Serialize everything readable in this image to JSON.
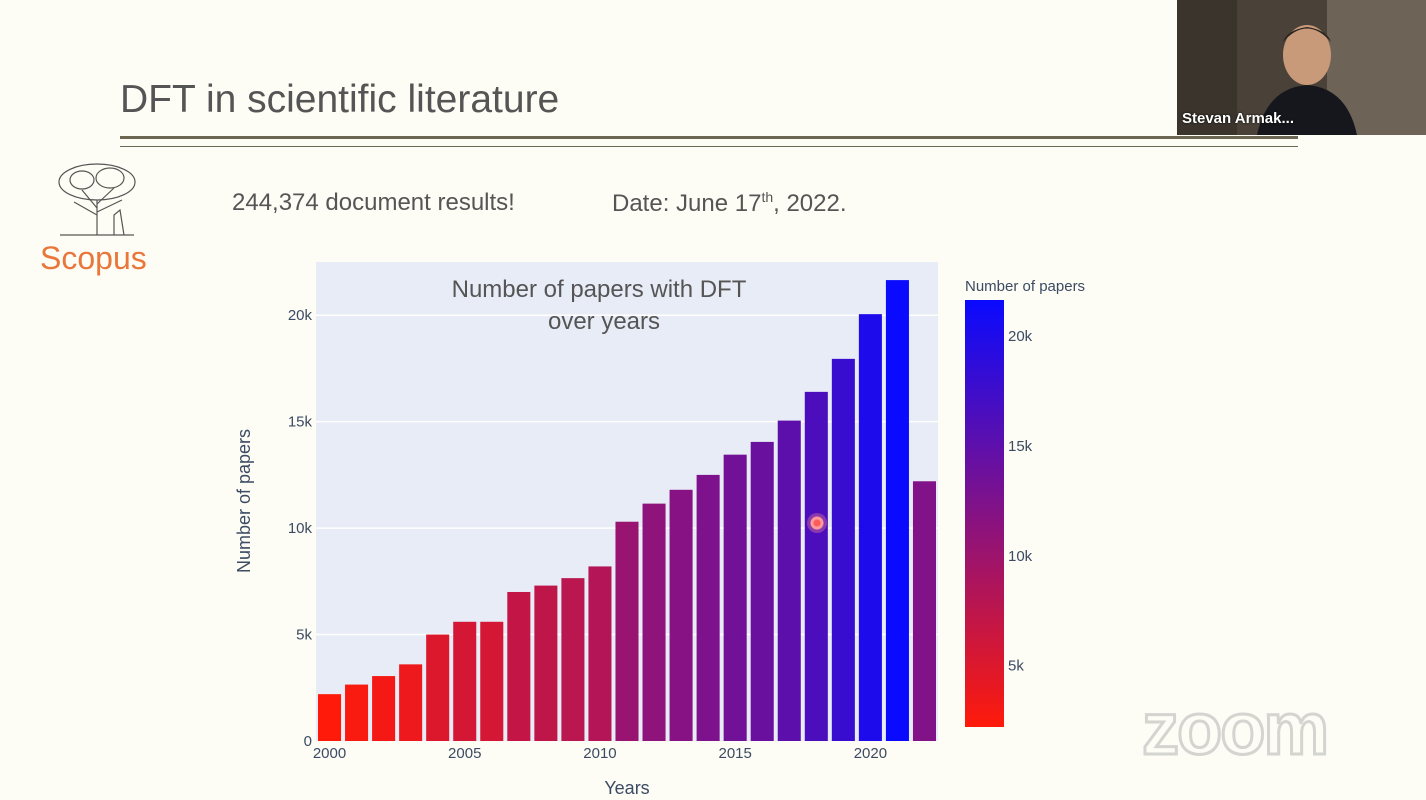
{
  "slide": {
    "title": "DFT in scientific literature",
    "results": "244,374 document results!",
    "date_prefix": "Date: June 17",
    "date_sup": "th",
    "date_suffix": ", 2022.",
    "logo_text": "Scopus"
  },
  "video": {
    "participant": "Stevan Armak..."
  },
  "watermark": "zoom",
  "chart_data": {
    "type": "bar",
    "title_lines": [
      "Number of papers with DFT",
      "over years"
    ],
    "xlabel": "Years",
    "ylabel": "Number of papers",
    "x": [
      2000,
      2001,
      2002,
      2003,
      2004,
      2005,
      2006,
      2007,
      2008,
      2009,
      2010,
      2011,
      2012,
      2013,
      2014,
      2015,
      2016,
      2017,
      2018,
      2019,
      2020,
      2021,
      2022
    ],
    "values": [
      2200,
      2650,
      3050,
      3600,
      5000,
      5600,
      5600,
      7000,
      7300,
      7650,
      8200,
      10300,
      11150,
      11800,
      12500,
      13450,
      14050,
      15050,
      16400,
      17950,
      20050,
      21650,
      12200
    ],
    "ylim": [
      0,
      22500
    ],
    "yticks": [
      0,
      5000,
      10000,
      15000,
      20000
    ],
    "ytick_labels": [
      "0",
      "5k",
      "10k",
      "15k",
      "20k"
    ],
    "xticks": [
      2000,
      2005,
      2010,
      2015,
      2020
    ],
    "xtick_labels": [
      "2000",
      "2005",
      "2010",
      "2015",
      "2020"
    ],
    "colorbar": {
      "title": "Number of papers",
      "range": [
        2200,
        21650
      ],
      "ticks": [
        5000,
        10000,
        15000,
        20000
      ],
      "tick_labels": [
        "5k",
        "10k",
        "15k",
        "20k"
      ],
      "color_low": "#ff1a0a",
      "color_high": "#0a0aff"
    },
    "grid": true,
    "plot_bg": "#e8ecf6"
  }
}
